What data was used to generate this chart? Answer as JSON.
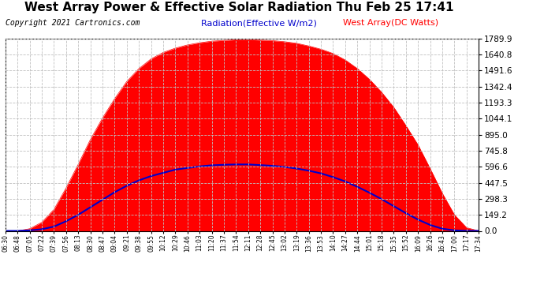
{
  "title": "West Array Power & Effective Solar Radiation Thu Feb 25 17:41",
  "copyright": "Copyright 2021 Cartronics.com",
  "legend_radiation": "Radiation(Effective W/m2)",
  "legend_west": "West Array(DC Watts)",
  "background_color": "#ffffff",
  "plot_bg_color": "#ffffff",
  "grid_color": "#c0c0c0",
  "radiation_color": "#0000cc",
  "west_array_color": "#ff0000",
  "west_array_fill_color": "#ff0000",
  "ymin": 0.0,
  "ymax": 1789.9,
  "yticks": [
    0.0,
    149.2,
    298.3,
    447.5,
    596.6,
    745.8,
    895.0,
    1044.1,
    1193.3,
    1342.4,
    1491.6,
    1640.8,
    1789.9
  ],
  "x_labels": [
    "06:30",
    "06:48",
    "07:05",
    "07:22",
    "07:39",
    "07:56",
    "08:13",
    "08:30",
    "08:47",
    "09:04",
    "09:21",
    "09:38",
    "09:55",
    "10:12",
    "10:29",
    "10:46",
    "11:03",
    "11:20",
    "11:37",
    "11:54",
    "12:11",
    "12:28",
    "12:45",
    "13:02",
    "13:19",
    "13:36",
    "13:53",
    "14:10",
    "14:27",
    "14:44",
    "15:01",
    "15:18",
    "15:35",
    "15:52",
    "16:09",
    "16:26",
    "16:43",
    "17:00",
    "17:17",
    "17:34"
  ],
  "west_array_values": [
    0,
    0,
    20,
    80,
    200,
    400,
    620,
    850,
    1050,
    1230,
    1390,
    1510,
    1600,
    1660,
    1700,
    1730,
    1750,
    1765,
    1772,
    1778,
    1779,
    1775,
    1770,
    1760,
    1745,
    1720,
    1690,
    1650,
    1590,
    1510,
    1410,
    1290,
    1150,
    980,
    800,
    580,
    350,
    150,
    30,
    0
  ],
  "radiation_values": [
    0,
    0,
    5,
    15,
    40,
    90,
    150,
    220,
    290,
    360,
    420,
    470,
    510,
    540,
    570,
    585,
    600,
    610,
    615,
    618,
    618,
    612,
    605,
    595,
    580,
    560,
    535,
    500,
    460,
    410,
    355,
    295,
    230,
    165,
    105,
    55,
    20,
    5,
    0,
    0
  ],
  "title_fontsize": 11,
  "copyright_fontsize": 7,
  "legend_fontsize": 8,
  "ytick_fontsize": 7.5,
  "xtick_fontsize": 5.5
}
